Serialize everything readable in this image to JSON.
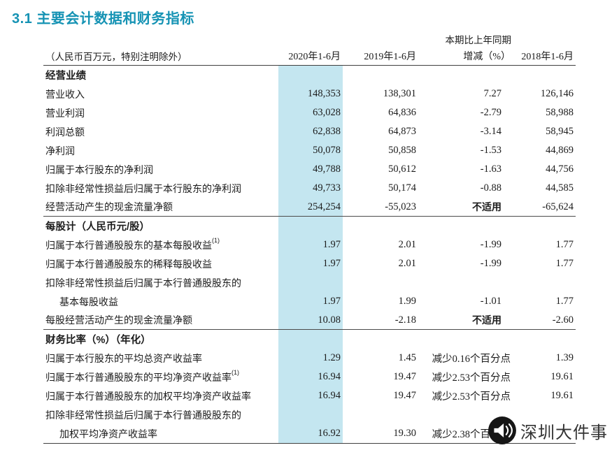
{
  "page": {
    "title": "3.1 主要会计数据和财务指标"
  },
  "table": {
    "group_header": "本期比上年同期",
    "unit_note": "（人民币百万元，特别注明除外）",
    "col_2020": "2020年1-6月",
    "col_2019": "2019年1-6月",
    "col_chg": "增减（%）",
    "col_2018": "2018年1-6月",
    "rows": [
      {
        "type": "section",
        "label": "经营业绩"
      },
      {
        "type": "data",
        "label": "营业收入",
        "y2020": "148,353",
        "y2019": "138,301",
        "chg": "7.27",
        "y2018": "126,146"
      },
      {
        "type": "data",
        "label": "营业利润",
        "y2020": "63,028",
        "y2019": "64,836",
        "chg": "-2.79",
        "y2018": "58,988"
      },
      {
        "type": "data",
        "label": "利润总额",
        "y2020": "62,838",
        "y2019": "64,873",
        "chg": "-3.14",
        "y2018": "58,945"
      },
      {
        "type": "data",
        "label": "净利润",
        "y2020": "50,078",
        "y2019": "50,858",
        "chg": "-1.53",
        "y2018": "44,869"
      },
      {
        "type": "data",
        "label": "归属于本行股东的净利润",
        "y2020": "49,788",
        "y2019": "50,612",
        "chg": "-1.63",
        "y2018": "44,756"
      },
      {
        "type": "data",
        "label": "扣除非经常性损益后归属于本行股东的净利润",
        "y2020": "49,733",
        "y2019": "50,174",
        "chg": "-0.88",
        "y2018": "44,585"
      },
      {
        "type": "data",
        "label": "经营活动产生的现金流量净额",
        "y2020": "254,254",
        "y2019": "-55,023",
        "chg": "不适用",
        "chg_bold": true,
        "y2018": "-65,624",
        "divider_after": true
      },
      {
        "type": "section",
        "label": "每股计（人民币元/股）"
      },
      {
        "type": "data",
        "label": "归属于本行普通股股东的基本每股收益",
        "sup": "(1)",
        "y2020": "1.97",
        "y2019": "2.01",
        "chg": "-1.99",
        "y2018": "1.77"
      },
      {
        "type": "data",
        "label": "归属于本行普通股股东的稀释每股收益",
        "y2020": "1.97",
        "y2019": "2.01",
        "chg": "-1.99",
        "y2018": "1.77"
      },
      {
        "type": "cont",
        "label": "扣除非经常性损益后归属于本行普通股股东的"
      },
      {
        "type": "data",
        "indent": true,
        "label": "基本每股收益",
        "y2020": "1.97",
        "y2019": "1.99",
        "chg": "-1.01",
        "y2018": "1.77"
      },
      {
        "type": "data",
        "label": "每股经营活动产生的现金流量净额",
        "y2020": "10.08",
        "y2019": "-2.18",
        "chg": "不适用",
        "chg_bold": true,
        "y2018": "-2.60",
        "divider_after": true
      },
      {
        "type": "section",
        "label": "财务比率（%）（年化）"
      },
      {
        "type": "data",
        "label": "归属于本行股东的平均总资产收益率",
        "y2020": "1.29",
        "y2019": "1.45",
        "chg": "减少0.16个百分点",
        "y2018": "1.39"
      },
      {
        "type": "data",
        "label": "归属于本行普通股股东的平均净资产收益率",
        "sup": "(1)",
        "y2020": "16.94",
        "y2019": "19.47",
        "chg": "减少2.53个百分点",
        "y2018": "19.61"
      },
      {
        "type": "data",
        "label": "归属于本行普通股股东的加权平均净资产收益率",
        "y2020": "16.94",
        "y2019": "19.47",
        "chg": "减少2.53个百分点",
        "y2018": "19.61"
      },
      {
        "type": "cont",
        "label": "扣除非经常性损益后归属于本行普通股股东的"
      },
      {
        "type": "data",
        "indent": true,
        "label": "加权平均净资产收益率",
        "y2020": "16.92",
        "y2019": "19.30",
        "chg": "减少2.38个百分点",
        "y2018": ""
      }
    ]
  },
  "watermark": {
    "text": "深圳大件事",
    "icon": "megaphone-icon"
  },
  "colors": {
    "title": "#1693b4",
    "highlight": "#c4e6f0",
    "text": "#1c1c1c",
    "line": "#3f3f3f"
  }
}
